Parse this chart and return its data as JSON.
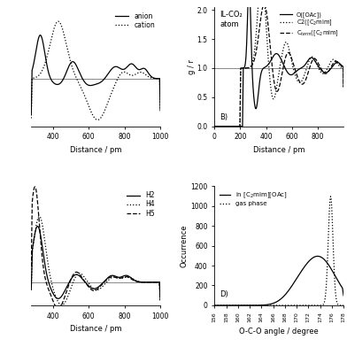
{
  "panel_A": {
    "xlabel": "Distance / pm",
    "ylabel": "",
    "xlim": [
      280,
      1000
    ],
    "ylim": [
      0.4,
      1.9
    ],
    "hline": 1.0,
    "legend": [
      "anion",
      "cation"
    ],
    "xticks": [
      400,
      600,
      800,
      1000
    ]
  },
  "panel_B": {
    "title_line1": "IL-CO₂",
    "title_line2": "atom",
    "label": "B)",
    "xlabel": "Distance / pm",
    "ylabel": "g / r",
    "xlim": [
      0,
      1000
    ],
    "ylim": [
      0,
      2.05
    ],
    "hline": 1.0,
    "yticks": [
      0,
      0.5,
      1.0,
      1.5,
      2.0
    ],
    "xticks": [
      0,
      200,
      400,
      600,
      800
    ],
    "legend": [
      "O([OAc])",
      "C2([C₂mim]",
      "Cₜₑₐₙₖ([C₂mim]"
    ]
  },
  "panel_C": {
    "xlabel": "Distance / pm",
    "ylabel": "",
    "xlim": [
      280,
      1000
    ],
    "ylim": [
      0.3,
      2.1
    ],
    "hline": 0.65,
    "legend": [
      "H2",
      "H4",
      "H5"
    ],
    "xticks": [
      400,
      600,
      800,
      1000
    ]
  },
  "panel_D": {
    "label": "D)",
    "xlabel": "O-C-O angle / degree",
    "ylabel": "Occurrence",
    "xlim": [
      156,
      178
    ],
    "ylim": [
      0,
      1200
    ],
    "yticks": [
      0,
      200,
      400,
      600,
      800,
      1000,
      1200
    ],
    "xticks": [
      156,
      158,
      160,
      162,
      164,
      166,
      168,
      170,
      172,
      174,
      176,
      178
    ],
    "legend": [
      "in [C₂mim][OAc]",
      "gas phase"
    ]
  },
  "bg_color": "#ffffff",
  "line_color": "#000000",
  "ref_line_color": "#888888"
}
